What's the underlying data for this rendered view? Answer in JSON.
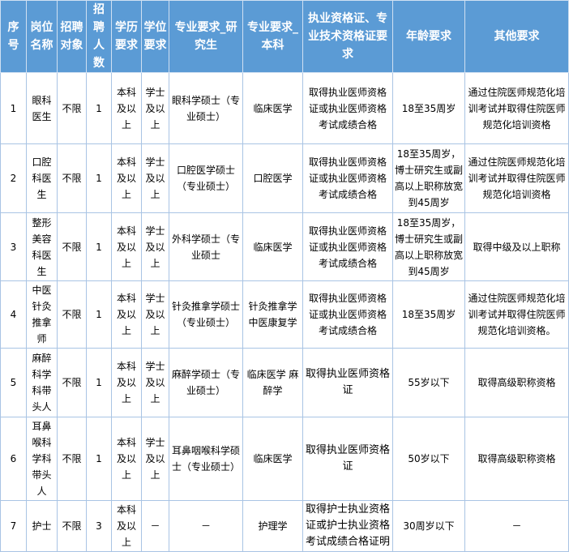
{
  "headers": [
    "序号",
    "岗位名称",
    "招聘对象",
    "招聘人数",
    "学历要求",
    "学位要求",
    "专业要求_研究生",
    "专业要求_本科",
    "执业资格证、专业技术资格证要求",
    "年龄要求",
    "其他要求"
  ],
  "rows": [
    [
      "1",
      "眼科医生",
      "不限",
      "1",
      "本科及以上",
      "学士及以上",
      "眼科学硕士（专业硕士）",
      "临床医学",
      "取得执业医师资格证或执业医师资格考试成绩合格",
      "18至35周岁",
      "通过住院医师规范化培训考试并取得住院医师规范化培训资格"
    ],
    [
      "2",
      "口腔科医生",
      "不限",
      "1",
      "本科及以上",
      "学士及以上",
      "口腔医学硕士（专业硕士）",
      "口腔医学",
      "取得执业医师资格证或执业医师资格考试成绩合格",
      "18至35周岁，博士研究生或副高以上职称放宽到45周岁",
      "通过住院医师规范化培训考试并取得住院医师规范化培训资格"
    ],
    [
      "3",
      "整形美容科医生",
      "不限",
      "1",
      "本科及以上",
      "学士及以上",
      "外科学硕士（专业硕士",
      "临床医学",
      "取得执业医师资格证或执业医师资格考试成绩合格",
      "18至35周岁，博士研究生或副高以上职称放宽到45周岁",
      "取得中级及以上职称"
    ],
    [
      "4",
      "中医针灸推拿师",
      "不限",
      "1",
      "本科及以上",
      "学士及以上",
      "针灸推拿学硕士（专业硕士）",
      "针灸推拿学 中医康复学",
      "取得执业医师资格证或执业医师资格考试成绩合格",
      "18至35周岁",
      "通过住院医师规范化培训考试并取得住院医师规范化培训资格。"
    ],
    [
      "5",
      "麻醉科学科带头人",
      "不限",
      "1",
      "本科及以上",
      "学士及以上",
      "麻醉学硕士（专业硕士）",
      "临床医学 麻醉学",
      "取得执业医师资格证",
      "55岁以下",
      "取得高级职称资格"
    ],
    [
      "6",
      "耳鼻喉科学科带头人",
      "不限",
      "1",
      "本科及以上",
      "学士及以上",
      "耳鼻咽喉科学硕士（专业硕士）",
      "临床医学",
      "取得执业医师资格证",
      "50岁以下",
      "取得高级职称资格"
    ],
    [
      "7",
      "护士",
      "不限",
      "3",
      "本科及以上",
      "－",
      "－",
      "护理学",
      "取得护士执业资格证或护士执业资格考试成绩合格证明",
      "30周岁以下",
      "－"
    ]
  ]
}
